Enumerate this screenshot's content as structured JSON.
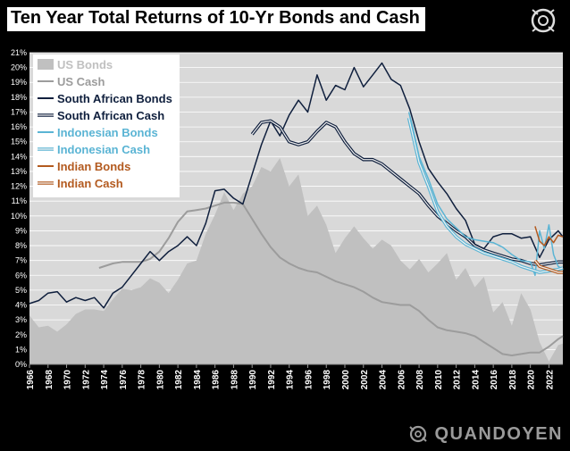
{
  "brand": "QUANDOYEN",
  "logo_icon": "quandoyen-logo-icon",
  "chart_data": {
    "type": "line",
    "title": "Ten Year Total Returns of 10-Yr Bonds and Cash",
    "xlabel": "",
    "ylabel": "",
    "xlim": [
      1966,
      2023.5
    ],
    "ylim": [
      0,
      21
    ],
    "x_ticks": [
      "1966",
      "1968",
      "1970",
      "1972",
      "1974",
      "1976",
      "1978",
      "1980",
      "1982",
      "1984",
      "1986",
      "1988",
      "1990",
      "1992",
      "1994",
      "1996",
      "1998",
      "2000",
      "2002",
      "2004",
      "2006",
      "2008",
      "2010",
      "2012",
      "2014",
      "2016",
      "2018",
      "2020",
      "2022"
    ],
    "y_ticks": [
      "0%",
      "1%",
      "2%",
      "3%",
      "4%",
      "5%",
      "6%",
      "7%",
      "8%",
      "9%",
      "10%",
      "11%",
      "12%",
      "13%",
      "14%",
      "15%",
      "16%",
      "17%",
      "18%",
      "19%",
      "20%",
      "21%"
    ],
    "grid": true,
    "legend_position": "top-left",
    "plot_background": "#d9d9d9",
    "series": [
      {
        "name": "US Bonds",
        "style": "area",
        "color": "#c0c0c0",
        "points": [
          [
            1966,
            3.3
          ],
          [
            1967,
            2.5
          ],
          [
            1968,
            2.6
          ],
          [
            1969,
            2.2
          ],
          [
            1970,
            2.7
          ],
          [
            1971,
            3.4
          ],
          [
            1972,
            3.7
          ],
          [
            1973,
            3.7
          ],
          [
            1974,
            3.6
          ],
          [
            1975,
            4.4
          ],
          [
            1976,
            5.1
          ],
          [
            1977,
            5.0
          ],
          [
            1978,
            5.2
          ],
          [
            1979,
            5.8
          ],
          [
            1980,
            5.5
          ],
          [
            1981,
            4.8
          ],
          [
            1982,
            5.7
          ],
          [
            1983,
            6.8
          ],
          [
            1984,
            7.0
          ],
          [
            1985,
            8.8
          ],
          [
            1986,
            10.1
          ],
          [
            1987,
            11.6
          ],
          [
            1988,
            10.4
          ],
          [
            1989,
            11.5
          ],
          [
            1990,
            12.0
          ],
          [
            1991,
            13.3
          ],
          [
            1992,
            13.0
          ],
          [
            1993,
            13.9
          ],
          [
            1994,
            12.0
          ],
          [
            1995,
            12.8
          ],
          [
            1996,
            10.0
          ],
          [
            1997,
            10.7
          ],
          [
            1998,
            9.4
          ],
          [
            1999,
            7.5
          ],
          [
            2000,
            8.5
          ],
          [
            2001,
            9.3
          ],
          [
            2002,
            8.5
          ],
          [
            2003,
            7.8
          ],
          [
            2004,
            8.4
          ],
          [
            2005,
            8.0
          ],
          [
            2006,
            7.0
          ],
          [
            2007,
            6.4
          ],
          [
            2008,
            7.1
          ],
          [
            2009,
            6.2
          ],
          [
            2010,
            6.8
          ],
          [
            2011,
            7.5
          ],
          [
            2012,
            5.7
          ],
          [
            2013,
            6.5
          ],
          [
            2014,
            5.2
          ],
          [
            2015,
            5.9
          ],
          [
            2016,
            3.5
          ],
          [
            2017,
            4.2
          ],
          [
            2018,
            2.6
          ],
          [
            2019,
            4.8
          ],
          [
            2020,
            3.7
          ],
          [
            2021,
            1.5
          ],
          [
            2022,
            0.2
          ],
          [
            2023,
            1.3
          ],
          [
            2023.5,
            1.4
          ]
        ]
      },
      {
        "name": "US Cash",
        "style": "line",
        "color": "#9c9c9c",
        "width": 2,
        "points": [
          [
            1973.5,
            6.5
          ],
          [
            1975,
            6.8
          ],
          [
            1976,
            6.9
          ],
          [
            1977,
            6.9
          ],
          [
            1978,
            6.9
          ],
          [
            1979,
            7.1
          ],
          [
            1980,
            7.6
          ],
          [
            1981,
            8.5
          ],
          [
            1982,
            9.6
          ],
          [
            1983,
            10.3
          ],
          [
            1984,
            10.4
          ],
          [
            1985,
            10.5
          ],
          [
            1986,
            10.7
          ],
          [
            1987,
            10.9
          ],
          [
            1988,
            10.9
          ],
          [
            1989,
            10.8
          ],
          [
            1990,
            9.8
          ],
          [
            1991,
            8.8
          ],
          [
            1992,
            7.9
          ],
          [
            1993,
            7.2
          ],
          [
            1994,
            6.8
          ],
          [
            1995,
            6.5
          ],
          [
            1996,
            6.3
          ],
          [
            1997,
            6.2
          ],
          [
            1998,
            5.9
          ],
          [
            1999,
            5.6
          ],
          [
            2000,
            5.4
          ],
          [
            2001,
            5.2
          ],
          [
            2002,
            4.9
          ],
          [
            2003,
            4.5
          ],
          [
            2004,
            4.2
          ],
          [
            2005,
            4.1
          ],
          [
            2006,
            4.0
          ],
          [
            2007,
            4.0
          ],
          [
            2008,
            3.6
          ],
          [
            2009,
            3.0
          ],
          [
            2010,
            2.5
          ],
          [
            2011,
            2.3
          ],
          [
            2012,
            2.2
          ],
          [
            2013,
            2.1
          ],
          [
            2014,
            1.9
          ],
          [
            2015,
            1.5
          ],
          [
            2016,
            1.1
          ],
          [
            2017,
            0.7
          ],
          [
            2018,
            0.6
          ],
          [
            2019,
            0.7
          ],
          [
            2020,
            0.8
          ],
          [
            2021,
            0.8
          ],
          [
            2022,
            1.2
          ],
          [
            2023,
            1.7
          ],
          [
            2023.5,
            1.9
          ]
        ]
      },
      {
        "name": "South African Bonds",
        "style": "line",
        "color": "#0f1f3d",
        "width": 1.5,
        "points": [
          [
            1966,
            4.1
          ],
          [
            1967,
            4.3
          ],
          [
            1968,
            4.8
          ],
          [
            1969,
            4.9
          ],
          [
            1970,
            4.2
          ],
          [
            1971,
            4.5
          ],
          [
            1972,
            4.3
          ],
          [
            1973,
            4.5
          ],
          [
            1974,
            3.8
          ],
          [
            1975,
            4.8
          ],
          [
            1976,
            5.2
          ],
          [
            1977,
            6.0
          ],
          [
            1978,
            6.8
          ],
          [
            1979,
            7.6
          ],
          [
            1980,
            7.0
          ],
          [
            1981,
            7.6
          ],
          [
            1982,
            8.0
          ],
          [
            1983,
            8.6
          ],
          [
            1984,
            8.0
          ],
          [
            1985,
            9.5
          ],
          [
            1986,
            11.7
          ],
          [
            1987,
            11.8
          ],
          [
            1988,
            11.2
          ],
          [
            1989,
            10.8
          ],
          [
            1990,
            12.8
          ],
          [
            1991,
            14.8
          ],
          [
            1992,
            16.4
          ],
          [
            1993,
            15.4
          ],
          [
            1994,
            16.8
          ],
          [
            1995,
            17.8
          ],
          [
            1996,
            17.0
          ],
          [
            1997,
            19.5
          ],
          [
            1998,
            17.8
          ],
          [
            1999,
            18.8
          ],
          [
            2000,
            18.5
          ],
          [
            2001,
            20.0
          ],
          [
            2002,
            18.7
          ],
          [
            2003,
            19.5
          ],
          [
            2004,
            20.3
          ],
          [
            2005,
            19.2
          ],
          [
            2006,
            18.8
          ],
          [
            2007,
            17.2
          ],
          [
            2008,
            15.0
          ],
          [
            2009,
            13.2
          ],
          [
            2010,
            12.3
          ],
          [
            2011,
            11.5
          ],
          [
            2012,
            10.5
          ],
          [
            2013,
            9.7
          ],
          [
            2014,
            8.1
          ],
          [
            2015,
            7.8
          ],
          [
            2016,
            8.6
          ],
          [
            2017,
            8.8
          ],
          [
            2018,
            8.8
          ],
          [
            2019,
            8.5
          ],
          [
            2020,
            8.6
          ],
          [
            2021,
            7.2
          ],
          [
            2022,
            8.4
          ],
          [
            2023,
            9.0
          ],
          [
            2023.5,
            8.6
          ]
        ]
      },
      {
        "name": "South African Cash",
        "style": "double",
        "color": "#0f1f3d",
        "width": 2,
        "points": [
          [
            1990,
            15.5
          ],
          [
            1991,
            16.3
          ],
          [
            1992,
            16.4
          ],
          [
            1993,
            16.0
          ],
          [
            1994,
            15.0
          ],
          [
            1995,
            14.8
          ],
          [
            1996,
            15.0
          ],
          [
            1997,
            15.7
          ],
          [
            1998,
            16.3
          ],
          [
            1999,
            16.0
          ],
          [
            2000,
            15.0
          ],
          [
            2001,
            14.2
          ],
          [
            2002,
            13.8
          ],
          [
            2003,
            13.8
          ],
          [
            2004,
            13.5
          ],
          [
            2005,
            13.0
          ],
          [
            2006,
            12.5
          ],
          [
            2007,
            12.0
          ],
          [
            2008,
            11.5
          ],
          [
            2009,
            10.7
          ],
          [
            2010,
            10.0
          ],
          [
            2011,
            9.5
          ],
          [
            2012,
            9.0
          ],
          [
            2013,
            8.6
          ],
          [
            2014,
            8.0
          ],
          [
            2015,
            7.7
          ],
          [
            2016,
            7.5
          ],
          [
            2017,
            7.3
          ],
          [
            2018,
            7.1
          ],
          [
            2019,
            7.0
          ],
          [
            2020,
            6.8
          ],
          [
            2021,
            6.7
          ],
          [
            2022,
            6.8
          ],
          [
            2023,
            6.9
          ],
          [
            2023.5,
            6.9
          ]
        ]
      },
      {
        "name": "Indonesian Bonds",
        "style": "line",
        "color": "#5ab4d4",
        "width": 1.5,
        "points": [
          [
            2006.9,
            17.0
          ],
          [
            2007.3,
            16.0
          ],
          [
            2008,
            14.0
          ],
          [
            2009,
            12.5
          ],
          [
            2010,
            10.8
          ],
          [
            2011,
            9.8
          ],
          [
            2012,
            9.2
          ],
          [
            2013,
            8.6
          ],
          [
            2014,
            8.4
          ],
          [
            2015,
            8.3
          ],
          [
            2016,
            8.2
          ],
          [
            2017,
            7.9
          ],
          [
            2018,
            7.4
          ],
          [
            2019,
            7.0
          ],
          [
            2020,
            6.9
          ],
          [
            2020.5,
            6.0
          ],
          [
            2021,
            9.0
          ],
          [
            2021.5,
            7.8
          ],
          [
            2022,
            9.4
          ],
          [
            2022.5,
            7.4
          ],
          [
            2023,
            6.6
          ],
          [
            2023.5,
            6.4
          ]
        ]
      },
      {
        "name": "Indonesian Cash",
        "style": "double",
        "color": "#5ab4d4",
        "width": 2,
        "points": [
          [
            2006.9,
            16.6
          ],
          [
            2007.3,
            15.5
          ],
          [
            2008,
            13.6
          ],
          [
            2009,
            12.0
          ],
          [
            2010,
            10.3
          ],
          [
            2011,
            9.3
          ],
          [
            2012,
            8.6
          ],
          [
            2013,
            8.1
          ],
          [
            2014,
            7.8
          ],
          [
            2015,
            7.5
          ],
          [
            2016,
            7.3
          ],
          [
            2017,
            7.1
          ],
          [
            2018,
            6.9
          ],
          [
            2019,
            6.6
          ],
          [
            2020,
            6.4
          ],
          [
            2021,
            6.2
          ],
          [
            2022,
            6.3
          ],
          [
            2023,
            6.4
          ],
          [
            2023.5,
            6.5
          ]
        ]
      },
      {
        "name": "Indian Bonds",
        "style": "line",
        "color": "#b35a1f",
        "width": 1.5,
        "points": [
          [
            2020.5,
            9.3
          ],
          [
            2021,
            8.3
          ],
          [
            2021.5,
            8.0
          ],
          [
            2022,
            8.6
          ],
          [
            2022.5,
            8.2
          ],
          [
            2023,
            8.7
          ],
          [
            2023.5,
            8.6
          ]
        ]
      },
      {
        "name": "Indian Cash",
        "style": "double",
        "color": "#b35a1f",
        "width": 2,
        "points": [
          [
            2020.5,
            7.0
          ],
          [
            2021,
            6.6
          ],
          [
            2021.5,
            6.5
          ],
          [
            2022,
            6.4
          ],
          [
            2022.5,
            6.3
          ],
          [
            2023,
            6.2
          ],
          [
            2023.5,
            6.2
          ]
        ]
      }
    ]
  }
}
